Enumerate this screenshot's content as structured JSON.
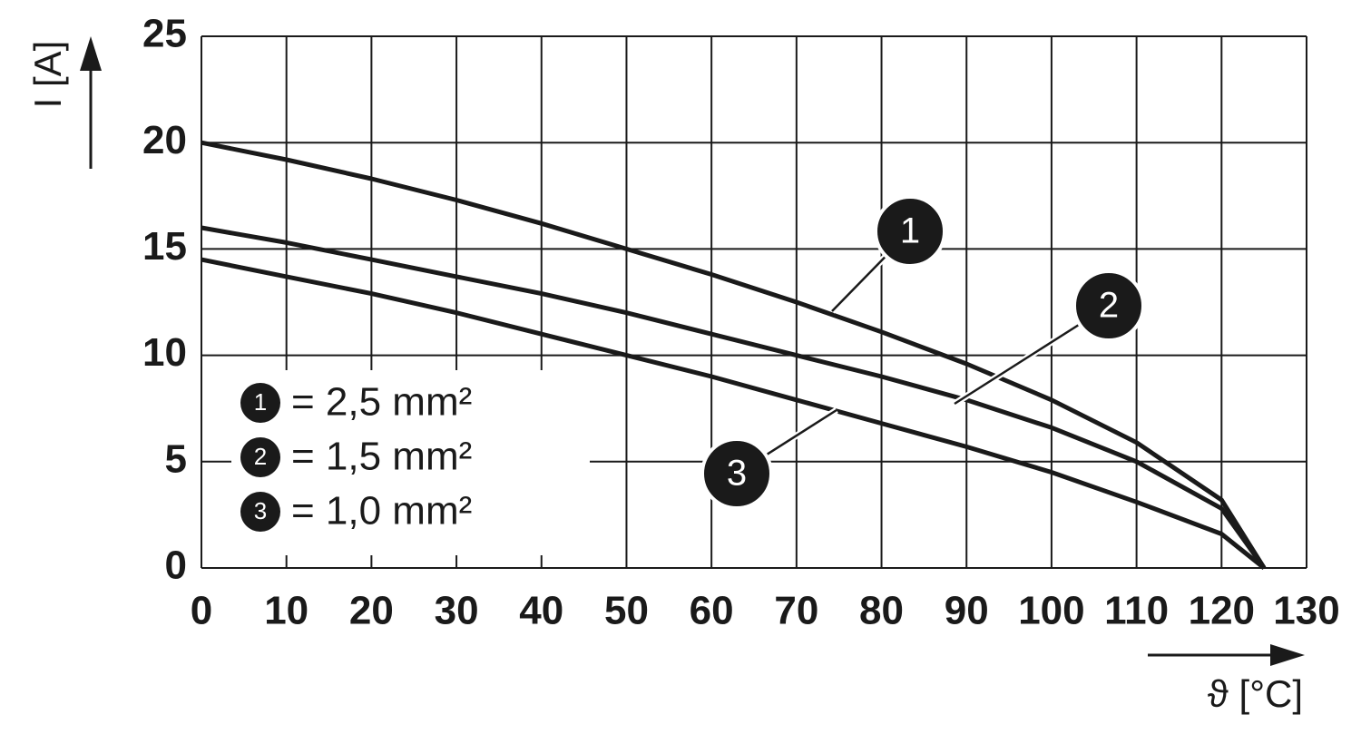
{
  "chart_data": {
    "type": "line",
    "x_label": "ϑ [°C]",
    "y_label": "I [A]",
    "x": [
      0,
      10,
      20,
      30,
      40,
      50,
      60,
      70,
      80,
      90,
      100,
      110,
      120,
      125
    ],
    "series": [
      {
        "name": "= 2,5 mm²",
        "label": "1",
        "color": "#1a1a1a",
        "values": [
          20,
          19.2,
          18.3,
          17.3,
          16.2,
          15.0,
          13.8,
          12.5,
          11.1,
          9.6,
          7.9,
          5.9,
          3.2,
          0
        ]
      },
      {
        "name": "= 1,5 mm²",
        "label": "2",
        "color": "#1a1a1a",
        "values": [
          16,
          15.3,
          14.5,
          13.7,
          12.9,
          12.0,
          11.0,
          10.0,
          9.0,
          7.9,
          6.6,
          5.0,
          2.8,
          0
        ]
      },
      {
        "name": "= 1,0 mm²",
        "label": "3",
        "color": "#1a1a1a",
        "values": [
          14.5,
          13.7,
          12.9,
          12.0,
          11.0,
          10.0,
          9.0,
          7.9,
          6.8,
          5.7,
          4.5,
          3.1,
          1.6,
          0
        ]
      }
    ],
    "xlim": [
      0,
      130
    ],
    "xticks": [
      0,
      10,
      20,
      30,
      40,
      50,
      60,
      70,
      80,
      90,
      100,
      110,
      120,
      130
    ],
    "ylim": [
      0,
      25
    ],
    "yticks": [
      0,
      5,
      10,
      15,
      20,
      25
    ],
    "grid": true,
    "legend": "lower left"
  }
}
